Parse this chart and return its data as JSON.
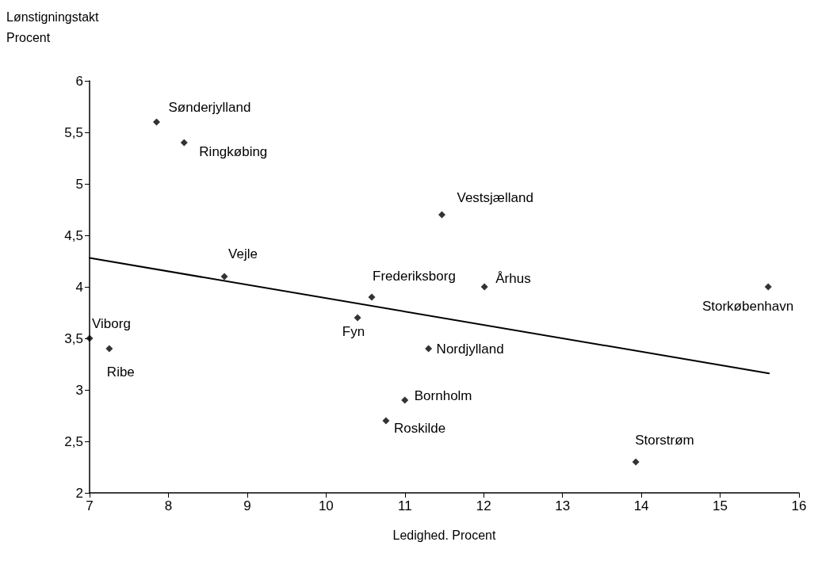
{
  "chart_data": {
    "type": "scatter",
    "ylabel": "Lønstigningstakt\nProcent",
    "xlabel": "Ledighed. Procent",
    "series": [
      {
        "color": "#000000",
        "marker": "diamond",
        "x": [
          7.85,
          8.2,
          11.47,
          8.71,
          10.58,
          12.01,
          15.61,
          7.0,
          7.25,
          10.4,
          11.3,
          11.0,
          10.76,
          13.93
        ],
        "values": [
          5.6,
          5.4,
          4.7,
          4.1,
          3.9,
          4.0,
          4.0,
          3.5,
          3.4,
          3.7,
          3.4,
          2.9,
          2.7,
          2.3
        ]
      },
      {
        "type": "line",
        "color": "#000000",
        "marker": "none",
        "line_style": "solid",
        "x": [
          7.0,
          15.62
        ],
        "values": [
          4.28,
          3.16
        ]
      }
    ],
    "annotations": [
      {
        "text": "Sønderjylland",
        "x": 7.85,
        "y": 5.6
      },
      {
        "text": "Ringkøbing",
        "x": 8.2,
        "y": 5.4
      },
      {
        "text": "Vestsjælland",
        "x": 11.47,
        "y": 4.7
      },
      {
        "text": "Vejle",
        "x": 8.71,
        "y": 4.1
      },
      {
        "text": "Frederiksborg",
        "x": 10.58,
        "y": 3.9
      },
      {
        "text": "Århus",
        "x": 12.01,
        "y": 4.0
      },
      {
        "text": "Storkøbenhavn",
        "x": 15.61,
        "y": 4.0
      },
      {
        "text": "Viborg",
        "x": 7.0,
        "y": 3.5
      },
      {
        "text": "Ribe",
        "x": 7.25,
        "y": 3.4
      },
      {
        "text": "Fyn",
        "x": 10.4,
        "y": 3.7
      },
      {
        "text": "Nordjylland",
        "x": 11.3,
        "y": 3.4
      },
      {
        "text": "Bornholm",
        "x": 11.0,
        "y": 2.9
      },
      {
        "text": "Roskilde",
        "x": 10.76,
        "y": 2.7
      },
      {
        "text": "Storstrøm",
        "x": 13.93,
        "y": 2.3
      }
    ],
    "xlim": [
      7,
      16
    ],
    "xticks": [
      7,
      8,
      9,
      10,
      11,
      12,
      13,
      14,
      15,
      16
    ],
    "ylim": [
      2,
      6
    ],
    "yticks": [
      2,
      {
        "value": 2.5,
        "label": "2,5"
      },
      3,
      {
        "value": 3.5,
        "label": "3,5"
      },
      4,
      {
        "value": 4.5,
        "label": "4,5"
      },
      5,
      {
        "value": 5.5,
        "label": "5,5"
      },
      6
    ],
    "grid": false
  }
}
